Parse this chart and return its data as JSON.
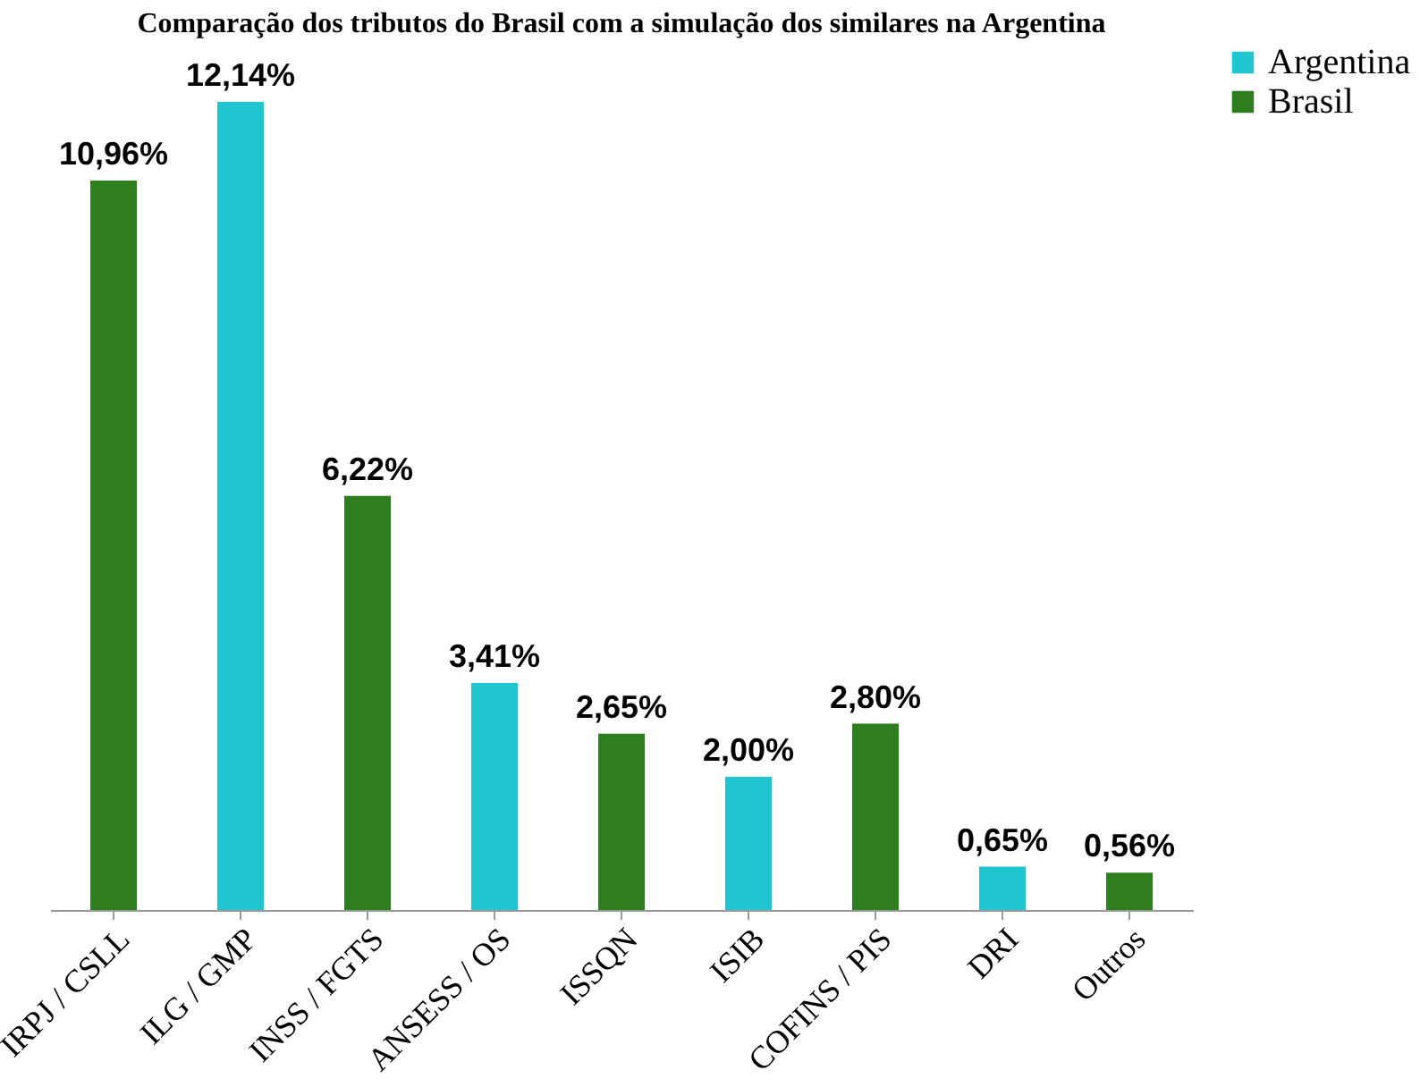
{
  "chart_data": {
    "type": "bar",
    "title": "Comparação dos tributos do Brasil com a simulação dos similares na Argentina",
    "categories": [
      "IRPJ / CSLL",
      "ILG / GMP",
      "INSS / FGTS",
      "ANSESS / OS",
      "ISSQN",
      "ISIB",
      "COFINS / PIS",
      "DRI",
      "Outros"
    ],
    "series": [
      {
        "name": "Argentina",
        "color": "#1fc6cf",
        "values": [
          null,
          12.14,
          null,
          3.41,
          null,
          2.0,
          null,
          0.65,
          null
        ],
        "value_labels": [
          null,
          "12,14%",
          null,
          "3,41%",
          null,
          "2,00%",
          null,
          "0,65%",
          null
        ]
      },
      {
        "name": "Brasil",
        "color": "#2e7d1f",
        "values": [
          10.96,
          null,
          6.22,
          null,
          2.65,
          null,
          2.8,
          null,
          0.56
        ],
        "value_labels": [
          "10,96%",
          null,
          "6,22%",
          null,
          "2,65%",
          null,
          "2,80%",
          null,
          "0,56%"
        ]
      }
    ],
    "legend": "right",
    "grid": false
  }
}
